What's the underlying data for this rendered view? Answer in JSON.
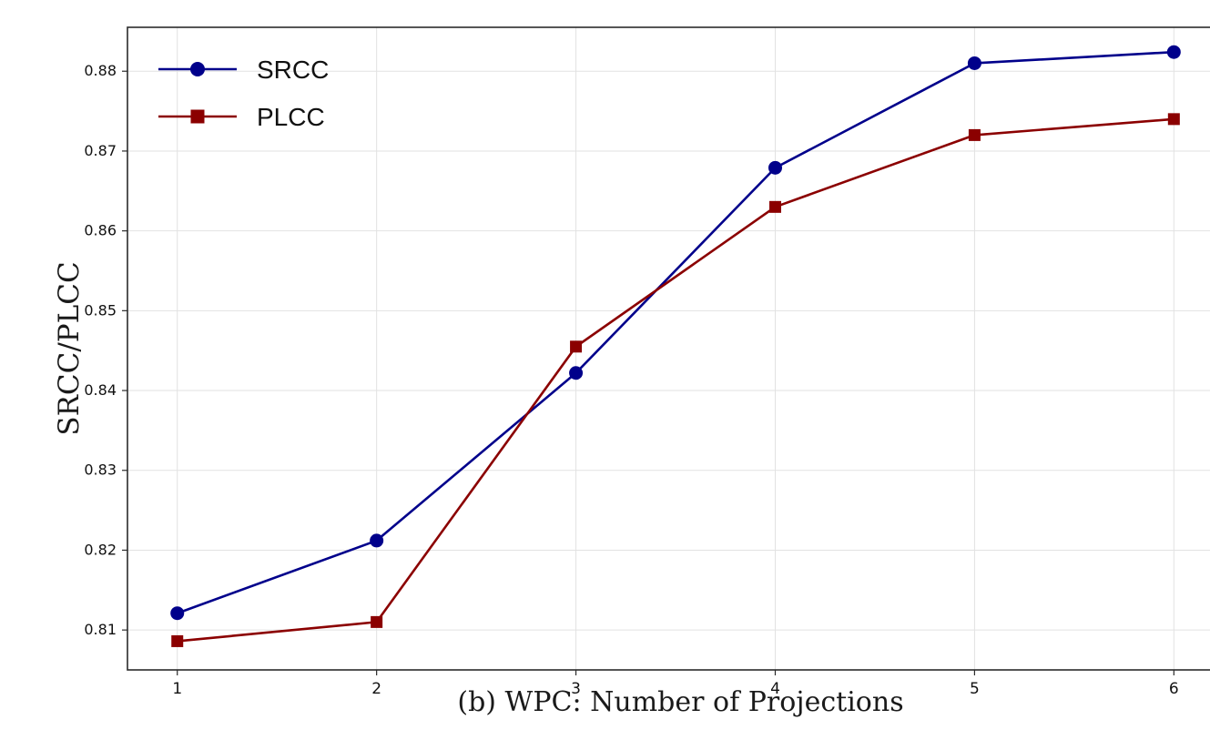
{
  "chart_data": {
    "type": "line",
    "title": "",
    "xlabel": "(b) WPC: Number of Projections",
    "ylabel": "SRCC/PLCC",
    "x": [
      1,
      2,
      3,
      4,
      5,
      6
    ],
    "series": [
      {
        "name": "SRCC",
        "color": "#00008B",
        "marker": "circle",
        "values": [
          0.8121,
          0.8212,
          0.8422,
          0.8679,
          0.881,
          0.8824
        ]
      },
      {
        "name": "PLCC",
        "color": "#8B0000",
        "marker": "square",
        "values": [
          0.8086,
          0.811,
          0.8455,
          0.863,
          0.872,
          0.874
        ]
      }
    ],
    "xlim": [
      0.75,
      6.3
    ],
    "ylim": [
      0.805,
      0.8855
    ],
    "xticks": [
      1,
      2,
      3,
      4,
      5,
      6
    ],
    "yticks": [
      0.81,
      0.82,
      0.83,
      0.84,
      0.85,
      0.86,
      0.87,
      0.88
    ],
    "grid": true,
    "legend_position": "upper-left",
    "grid_color": "#e2e2e2",
    "spine_color": "#2b2b2b"
  }
}
